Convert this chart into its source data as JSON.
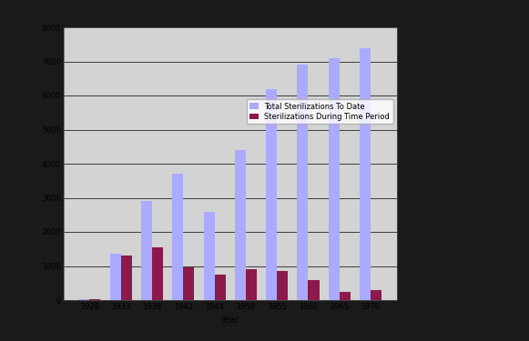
{
  "years": [
    "1928",
    "1933",
    "1938",
    "1942",
    "1944",
    "1950",
    "1955",
    "1960",
    "1965",
    "1970"
  ],
  "total_sterilizations": [
    30,
    1350,
    2900,
    3700,
    2600,
    4400,
    6200,
    6900,
    7100,
    7400
  ],
  "period_sterilizations": [
    20,
    1300,
    1550,
    950,
    750,
    900,
    850,
    600,
    250,
    300
  ],
  "total_color": "#aaaaff",
  "period_color": "#8b1a4a",
  "plot_bg_color": "#d3d3d3",
  "outer_bg_color": "#1a1a1a",
  "ylim": [
    0,
    8000
  ],
  "yticks": [
    0,
    1000,
    2000,
    3000,
    4000,
    5000,
    6000,
    7000,
    8000
  ],
  "xlabel": "Year",
  "legend_labels": [
    "Total Sterilizations To Date",
    "Sterilizations During Time Period"
  ],
  "bar_width": 0.35,
  "figsize": [
    5.81,
    3.75
  ],
  "dpi": 100
}
